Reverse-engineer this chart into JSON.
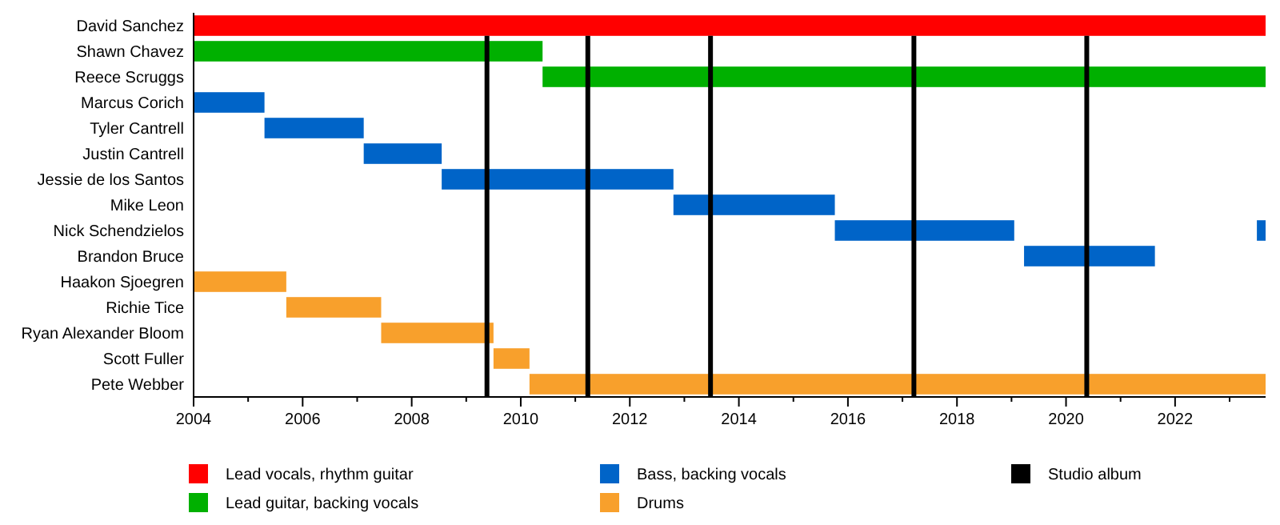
{
  "chart_data": {
    "type": "bar",
    "orientation": "horizontal",
    "stacked": false,
    "categories": [
      "David Sanchez",
      "Shawn Chavez",
      "Reece Scruggs",
      "Marcus Corich",
      "Tyler Cantrell",
      "Justin Cantrell",
      "Jessie de los Santos",
      "Mike Leon",
      "Nick Schendzielos",
      "Brandon Bruce",
      "Haakon Sjoegren",
      "Richie Tice",
      "Ryan Alexander Bloom",
      "Scott Fuller",
      "Pete Webber"
    ],
    "series": [
      {
        "name": "Lead vocals, rhythm guitar",
        "color": "#ff0000",
        "base": [
          2004,
          null,
          null,
          null,
          null,
          null,
          null,
          null,
          null,
          null,
          null,
          null,
          null,
          null,
          null
        ],
        "values": [
          19.66,
          null,
          null,
          null,
          null,
          null,
          null,
          null,
          null,
          null,
          null,
          null,
          null,
          null,
          null
        ]
      },
      {
        "name": "Lead guitar, backing vocals",
        "color": "#00b000",
        "base": [
          null,
          2004,
          2010.4,
          null,
          null,
          null,
          null,
          null,
          null,
          null,
          null,
          null,
          null,
          null,
          null
        ],
        "values": [
          null,
          6.4,
          13.26,
          null,
          null,
          null,
          null,
          null,
          null,
          null,
          null,
          null,
          null,
          null,
          null
        ]
      },
      {
        "name": "Bass, backing vocals",
        "color": "#0064c8",
        "base": [
          null,
          null,
          null,
          2004,
          2005.3,
          2007.12,
          2008.55,
          2012.8,
          2015.76,
          2019.23,
          null,
          null,
          null,
          null,
          null
        ],
        "values": [
          null,
          null,
          null,
          1.3,
          1.82,
          1.43,
          4.25,
          2.96,
          3.29,
          2.4,
          null,
          null,
          null,
          null,
          null
        ]
      },
      {
        "color": "#0064c8",
        "base": [
          null,
          null,
          null,
          null,
          null,
          null,
          null,
          null,
          2023.5,
          null,
          null,
          null,
          null,
          null,
          null
        ],
        "values": [
          null,
          null,
          null,
          null,
          null,
          null,
          null,
          null,
          0.16,
          null,
          null,
          null,
          null,
          null,
          null
        ]
      },
      {
        "name": "Drums",
        "color": "#f8a02c",
        "base": [
          null,
          null,
          null,
          null,
          null,
          null,
          null,
          null,
          null,
          null,
          2004,
          2005.7,
          2007.44,
          2009.5,
          2010.16
        ],
        "values": [
          null,
          null,
          null,
          null,
          null,
          null,
          null,
          null,
          null,
          null,
          1.7,
          1.74,
          2.06,
          0.66,
          13.5
        ]
      }
    ],
    "ref_lines": [
      {
        "axis": "x",
        "value": 2009.38,
        "label": "Studio album",
        "color": "#000000"
      },
      {
        "axis": "x",
        "value": 2011.23,
        "color": "#000000"
      },
      {
        "axis": "x",
        "value": 2013.48,
        "color": "#000000"
      },
      {
        "axis": "x",
        "value": 2017.21,
        "color": "#000000"
      },
      {
        "axis": "x",
        "value": 2020.38,
        "color": "#000000"
      }
    ],
    "xlim": [
      2004,
      2023.66
    ],
    "xticks": [
      2004,
      {
        "value": 2005,
        "label": null
      },
      2006,
      {
        "value": 2007,
        "label": null
      },
      2008,
      {
        "value": 2009,
        "label": null
      },
      2010,
      {
        "value": 2011,
        "label": null
      },
      2012,
      {
        "value": 2013,
        "label": null
      },
      2014,
      {
        "value": 2015,
        "label": null
      },
      2016,
      {
        "value": 2017,
        "label": null
      },
      2018,
      {
        "value": 2019,
        "label": null
      },
      2020,
      {
        "value": 2021,
        "label": null
      },
      2022,
      {
        "value": 2023,
        "label": null
      }
    ],
    "legend": "bottom"
  }
}
